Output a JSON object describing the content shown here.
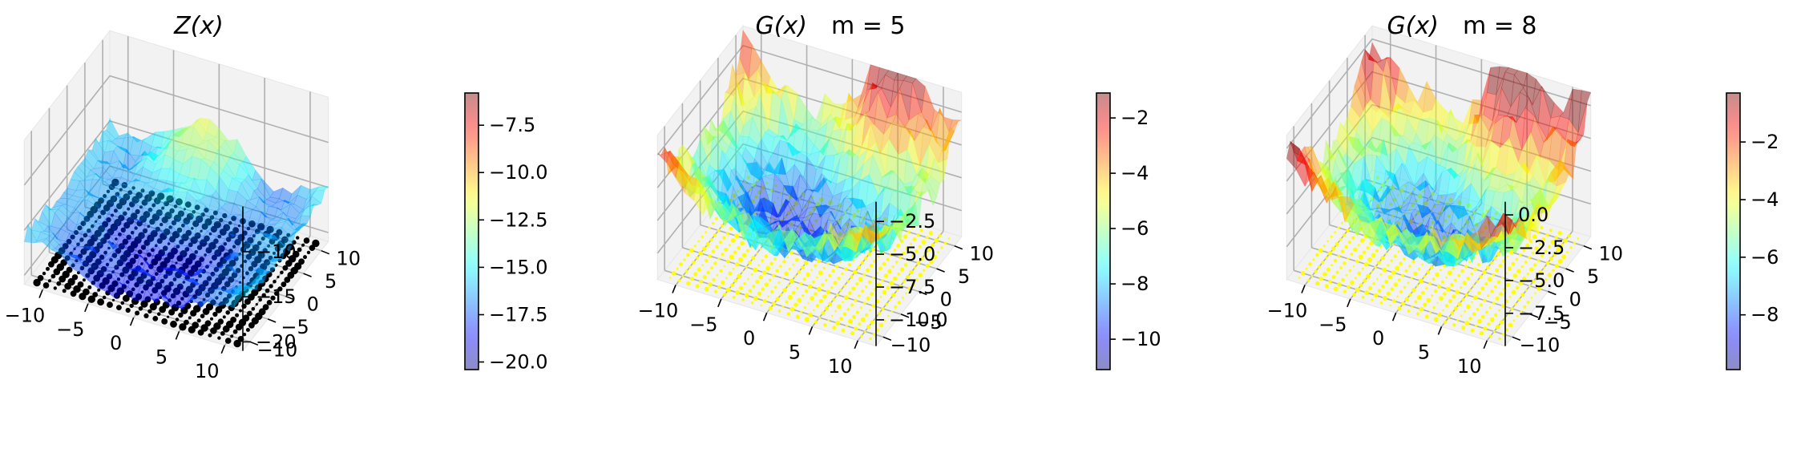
{
  "chart_data": [
    {
      "type": "surface3d",
      "title_func": "Z(x)",
      "title_param": "",
      "surface": "Z(x)",
      "xlim": [
        -12,
        12
      ],
      "ylim": [
        -12,
        12
      ],
      "zlim": [
        -21,
        -5
      ],
      "x_ticks": [
        "−10",
        "−5",
        "0",
        "5",
        "10"
      ],
      "y_ticks": [
        "−10",
        "−5",
        "0",
        "5",
        "10"
      ],
      "z_ticks": [
        {
          "label": "−10",
          "value": -10
        },
        {
          "label": "−15",
          "value": -15
        },
        {
          "label": "−20",
          "value": -20
        }
      ],
      "colorbar": {
        "range": [
          -20.4,
          -5.8
        ],
        "ticks": [
          {
            "label": "−7.5",
            "value": -7.5
          },
          {
            "label": "−10.0",
            "value": -10.0
          },
          {
            "label": "−12.5",
            "value": -12.5
          },
          {
            "label": "−15.0",
            "value": -15.0
          },
          {
            "label": "−17.5",
            "value": -17.5
          },
          {
            "label": "−20.0",
            "value": -20.0
          }
        ]
      },
      "floor_points_color": "#000000",
      "colormap": "jet",
      "surface_alpha": 0.5
    },
    {
      "type": "surface3d",
      "title_func": "G(x)",
      "title_param": "m = 5",
      "surface": "G(x)",
      "m": 5,
      "xlim": [
        -12,
        12
      ],
      "ylim": [
        -12,
        12
      ],
      "zlim": [
        -12,
        -1
      ],
      "x_ticks": [
        "−10",
        "−5",
        "0",
        "5",
        "10"
      ],
      "y_ticks": [
        "−10",
        "−5",
        "0",
        "5",
        "10"
      ],
      "z_ticks": [
        {
          "label": "−2.5",
          "value": -2.5
        },
        {
          "label": "−5.0",
          "value": -5.0
        },
        {
          "label": "−7.5",
          "value": -7.5
        },
        {
          "label": "−10.0",
          "value": -10.0
        }
      ],
      "colorbar": {
        "range": [
          -11.1,
          -1.1
        ],
        "ticks": [
          {
            "label": "−2",
            "value": -2
          },
          {
            "label": "−4",
            "value": -4
          },
          {
            "label": "−6",
            "value": -6
          },
          {
            "label": "−8",
            "value": -8
          },
          {
            "label": "−10",
            "value": -10
          }
        ]
      },
      "floor_points_color": "#ffff00",
      "colormap": "jet",
      "surface_alpha": 0.5
    },
    {
      "type": "surface3d",
      "title_func": "G(x)",
      "title_param": "m = 8",
      "surface": "G(x)",
      "m": 8,
      "xlim": [
        -12,
        12
      ],
      "ylim": [
        -12,
        12
      ],
      "zlim": [
        -10,
        1
      ],
      "x_ticks": [
        "−10",
        "−5",
        "0",
        "5",
        "10"
      ],
      "y_ticks": [
        "−10",
        "−5",
        "0",
        "5",
        "10"
      ],
      "z_ticks": [
        {
          "label": "0.0",
          "value": 0.0
        },
        {
          "label": "−2.5",
          "value": -2.5
        },
        {
          "label": "−5.0",
          "value": -5.0
        },
        {
          "label": "−7.5",
          "value": -7.5
        }
      ],
      "colorbar": {
        "range": [
          -9.9,
          -0.3
        ],
        "ticks": [
          {
            "label": "−2",
            "value": -2
          },
          {
            "label": "−4",
            "value": -4
          },
          {
            "label": "−6",
            "value": -6
          },
          {
            "label": "−8",
            "value": -8
          }
        ]
      },
      "floor_points_color": "#ffff00",
      "colormap": "jet",
      "surface_alpha": 0.5
    }
  ]
}
